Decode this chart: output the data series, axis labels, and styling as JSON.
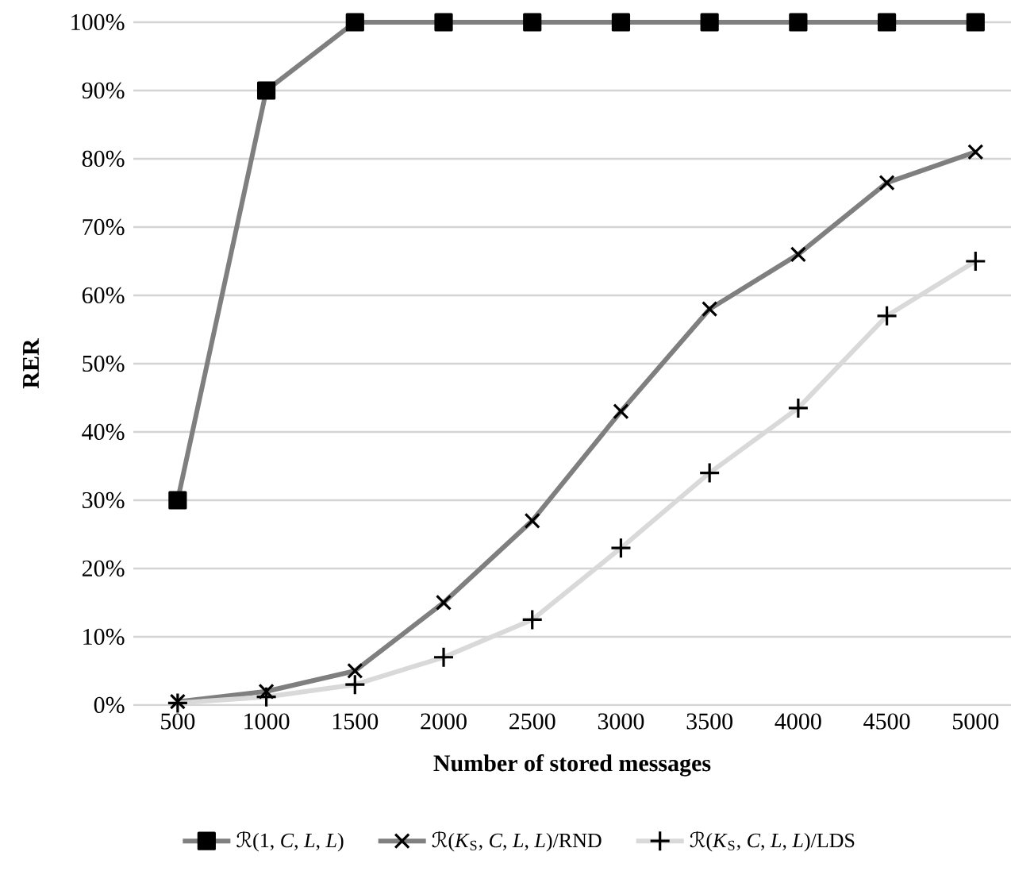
{
  "chart_data": {
    "type": "line",
    "xlabel": "Number of stored messages",
    "ylabel": "RER",
    "categories": [
      "500",
      "1000",
      "1500",
      "2000",
      "2500",
      "3000",
      "3500",
      "4000",
      "4500",
      "5000"
    ],
    "ylim": [
      0,
      100
    ],
    "yticks": [
      {
        "value": 0,
        "label": "0%"
      },
      {
        "value": 10,
        "label": "10%"
      },
      {
        "value": 20,
        "label": "20%"
      },
      {
        "value": 30,
        "label": "30%"
      },
      {
        "value": 40,
        "label": "40%"
      },
      {
        "value": 50,
        "label": "50%"
      },
      {
        "value": 60,
        "label": "60%"
      },
      {
        "value": 70,
        "label": "70%"
      },
      {
        "value": 80,
        "label": "80%"
      },
      {
        "value": 90,
        "label": "90%"
      },
      {
        "value": 100,
        "label": "100%"
      }
    ],
    "grid": "y",
    "legend": "bottom",
    "series": [
      {
        "name": "ℛ(1, *C*, *L*, *L*)",
        "color": "#7f7f7f",
        "marker": "square",
        "values": [
          30,
          90,
          100,
          100,
          100,
          100,
          100,
          100,
          100,
          100
        ]
      },
      {
        "name": "ℛ(*K*$_{S}$, *C*, *L*, *L*)/RND",
        "color": "#7f7f7f",
        "marker": "cross",
        "values": [
          0.5,
          2,
          5,
          15,
          27,
          43,
          58,
          66,
          76.5,
          81
        ]
      },
      {
        "name": "ℛ(*K*$_{S}$, *C*, *L*, *L*)/LDS",
        "color": "#d9d9d9",
        "marker": "plus",
        "values": [
          0.3,
          1.2,
          3,
          7,
          12.5,
          23,
          34,
          43.5,
          57,
          65
        ]
      }
    ]
  }
}
